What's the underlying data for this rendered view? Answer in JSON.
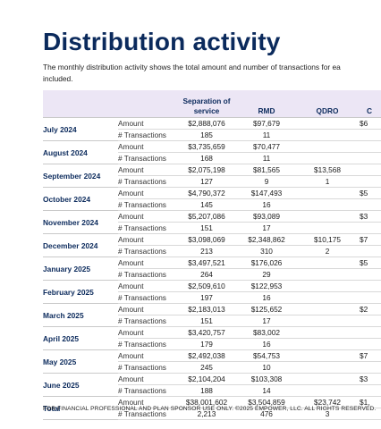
{
  "title": "Distribution activity",
  "description": {
    "line1": "The monthly distribution activity shows the total amount and number of transactions for ea",
    "line2": "included."
  },
  "table": {
    "headers": {
      "month": "",
      "metric": "",
      "separation": "Separation of service",
      "rmd": "RMD",
      "qdro": "QDRO",
      "extra": "C"
    },
    "metric_labels": {
      "amount": "Amount",
      "transactions": "# Transactions"
    },
    "rows": [
      {
        "month": "July 2024",
        "separation": {
          "amount": "$2,888,076",
          "transactions": "185"
        },
        "rmd": {
          "amount": "$97,679",
          "transactions": "11"
        },
        "qdro": {
          "amount": "",
          "transactions": ""
        },
        "extra": {
          "amount": "$6",
          "transactions": ""
        }
      },
      {
        "month": "August 2024",
        "separation": {
          "amount": "$3,735,659",
          "transactions": "168"
        },
        "rmd": {
          "amount": "$70,477",
          "transactions": "11"
        },
        "qdro": {
          "amount": "",
          "transactions": ""
        },
        "extra": {
          "amount": "",
          "transactions": ""
        }
      },
      {
        "month": "September 2024",
        "separation": {
          "amount": "$2,075,198",
          "transactions": "127"
        },
        "rmd": {
          "amount": "$81,565",
          "transactions": "9"
        },
        "qdro": {
          "amount": "$13,568",
          "transactions": "1"
        },
        "extra": {
          "amount": "",
          "transactions": ""
        }
      },
      {
        "month": "October 2024",
        "separation": {
          "amount": "$4,790,372",
          "transactions": "145"
        },
        "rmd": {
          "amount": "$147,493",
          "transactions": "16"
        },
        "qdro": {
          "amount": "",
          "transactions": ""
        },
        "extra": {
          "amount": "$5",
          "transactions": ""
        }
      },
      {
        "month": "November 2024",
        "separation": {
          "amount": "$5,207,086",
          "transactions": "151"
        },
        "rmd": {
          "amount": "$93,089",
          "transactions": "17"
        },
        "qdro": {
          "amount": "",
          "transactions": ""
        },
        "extra": {
          "amount": "$3",
          "transactions": ""
        }
      },
      {
        "month": "December 2024",
        "separation": {
          "amount": "$3,098,069",
          "transactions": "213"
        },
        "rmd": {
          "amount": "$2,348,862",
          "transactions": "310"
        },
        "qdro": {
          "amount": "$10,175",
          "transactions": "2"
        },
        "extra": {
          "amount": "$7",
          "transactions": ""
        }
      },
      {
        "month": "January 2025",
        "separation": {
          "amount": "$3,497,521",
          "transactions": "264"
        },
        "rmd": {
          "amount": "$176,026",
          "transactions": "29"
        },
        "qdro": {
          "amount": "",
          "transactions": ""
        },
        "extra": {
          "amount": "$5",
          "transactions": ""
        }
      },
      {
        "month": "February 2025",
        "separation": {
          "amount": "$2,509,610",
          "transactions": "197"
        },
        "rmd": {
          "amount": "$122,953",
          "transactions": "16"
        },
        "qdro": {
          "amount": "",
          "transactions": ""
        },
        "extra": {
          "amount": "",
          "transactions": ""
        }
      },
      {
        "month": "March 2025",
        "separation": {
          "amount": "$2,183,013",
          "transactions": "151"
        },
        "rmd": {
          "amount": "$125,652",
          "transactions": "17"
        },
        "qdro": {
          "amount": "",
          "transactions": ""
        },
        "extra": {
          "amount": "$2",
          "transactions": ""
        }
      },
      {
        "month": "April 2025",
        "separation": {
          "amount": "$3,420,757",
          "transactions": "179"
        },
        "rmd": {
          "amount": "$83,002",
          "transactions": "16"
        },
        "qdro": {
          "amount": "",
          "transactions": ""
        },
        "extra": {
          "amount": "",
          "transactions": ""
        }
      },
      {
        "month": "May 2025",
        "separation": {
          "amount": "$2,492,038",
          "transactions": "245"
        },
        "rmd": {
          "amount": "$54,753",
          "transactions": "10"
        },
        "qdro": {
          "amount": "",
          "transactions": ""
        },
        "extra": {
          "amount": "$7",
          "transactions": ""
        }
      },
      {
        "month": "June 2025",
        "separation": {
          "amount": "$2,104,204",
          "transactions": "188"
        },
        "rmd": {
          "amount": "$103,308",
          "transactions": "14"
        },
        "qdro": {
          "amount": "",
          "transactions": ""
        },
        "extra": {
          "amount": "$3",
          "transactions": ""
        }
      },
      {
        "month": "Total",
        "separation": {
          "amount": "$38,001,602",
          "transactions": "2,213"
        },
        "rmd": {
          "amount": "$3,504,859",
          "transactions": "476"
        },
        "qdro": {
          "amount": "$23,742",
          "transactions": "3"
        },
        "extra": {
          "amount": "$1,",
          "transactions": ""
        }
      }
    ]
  },
  "footer": "FOR FINANCIAL PROFESSIONAL AND PLAN SPONSOR USE ONLY. ©2025 EMPOWER, LLC. ALL RIGHTS RESERVED.",
  "colors": {
    "title": "#0b2a5c",
    "header_bg": "#ece6f5",
    "rule": "#d9d9d9"
  }
}
